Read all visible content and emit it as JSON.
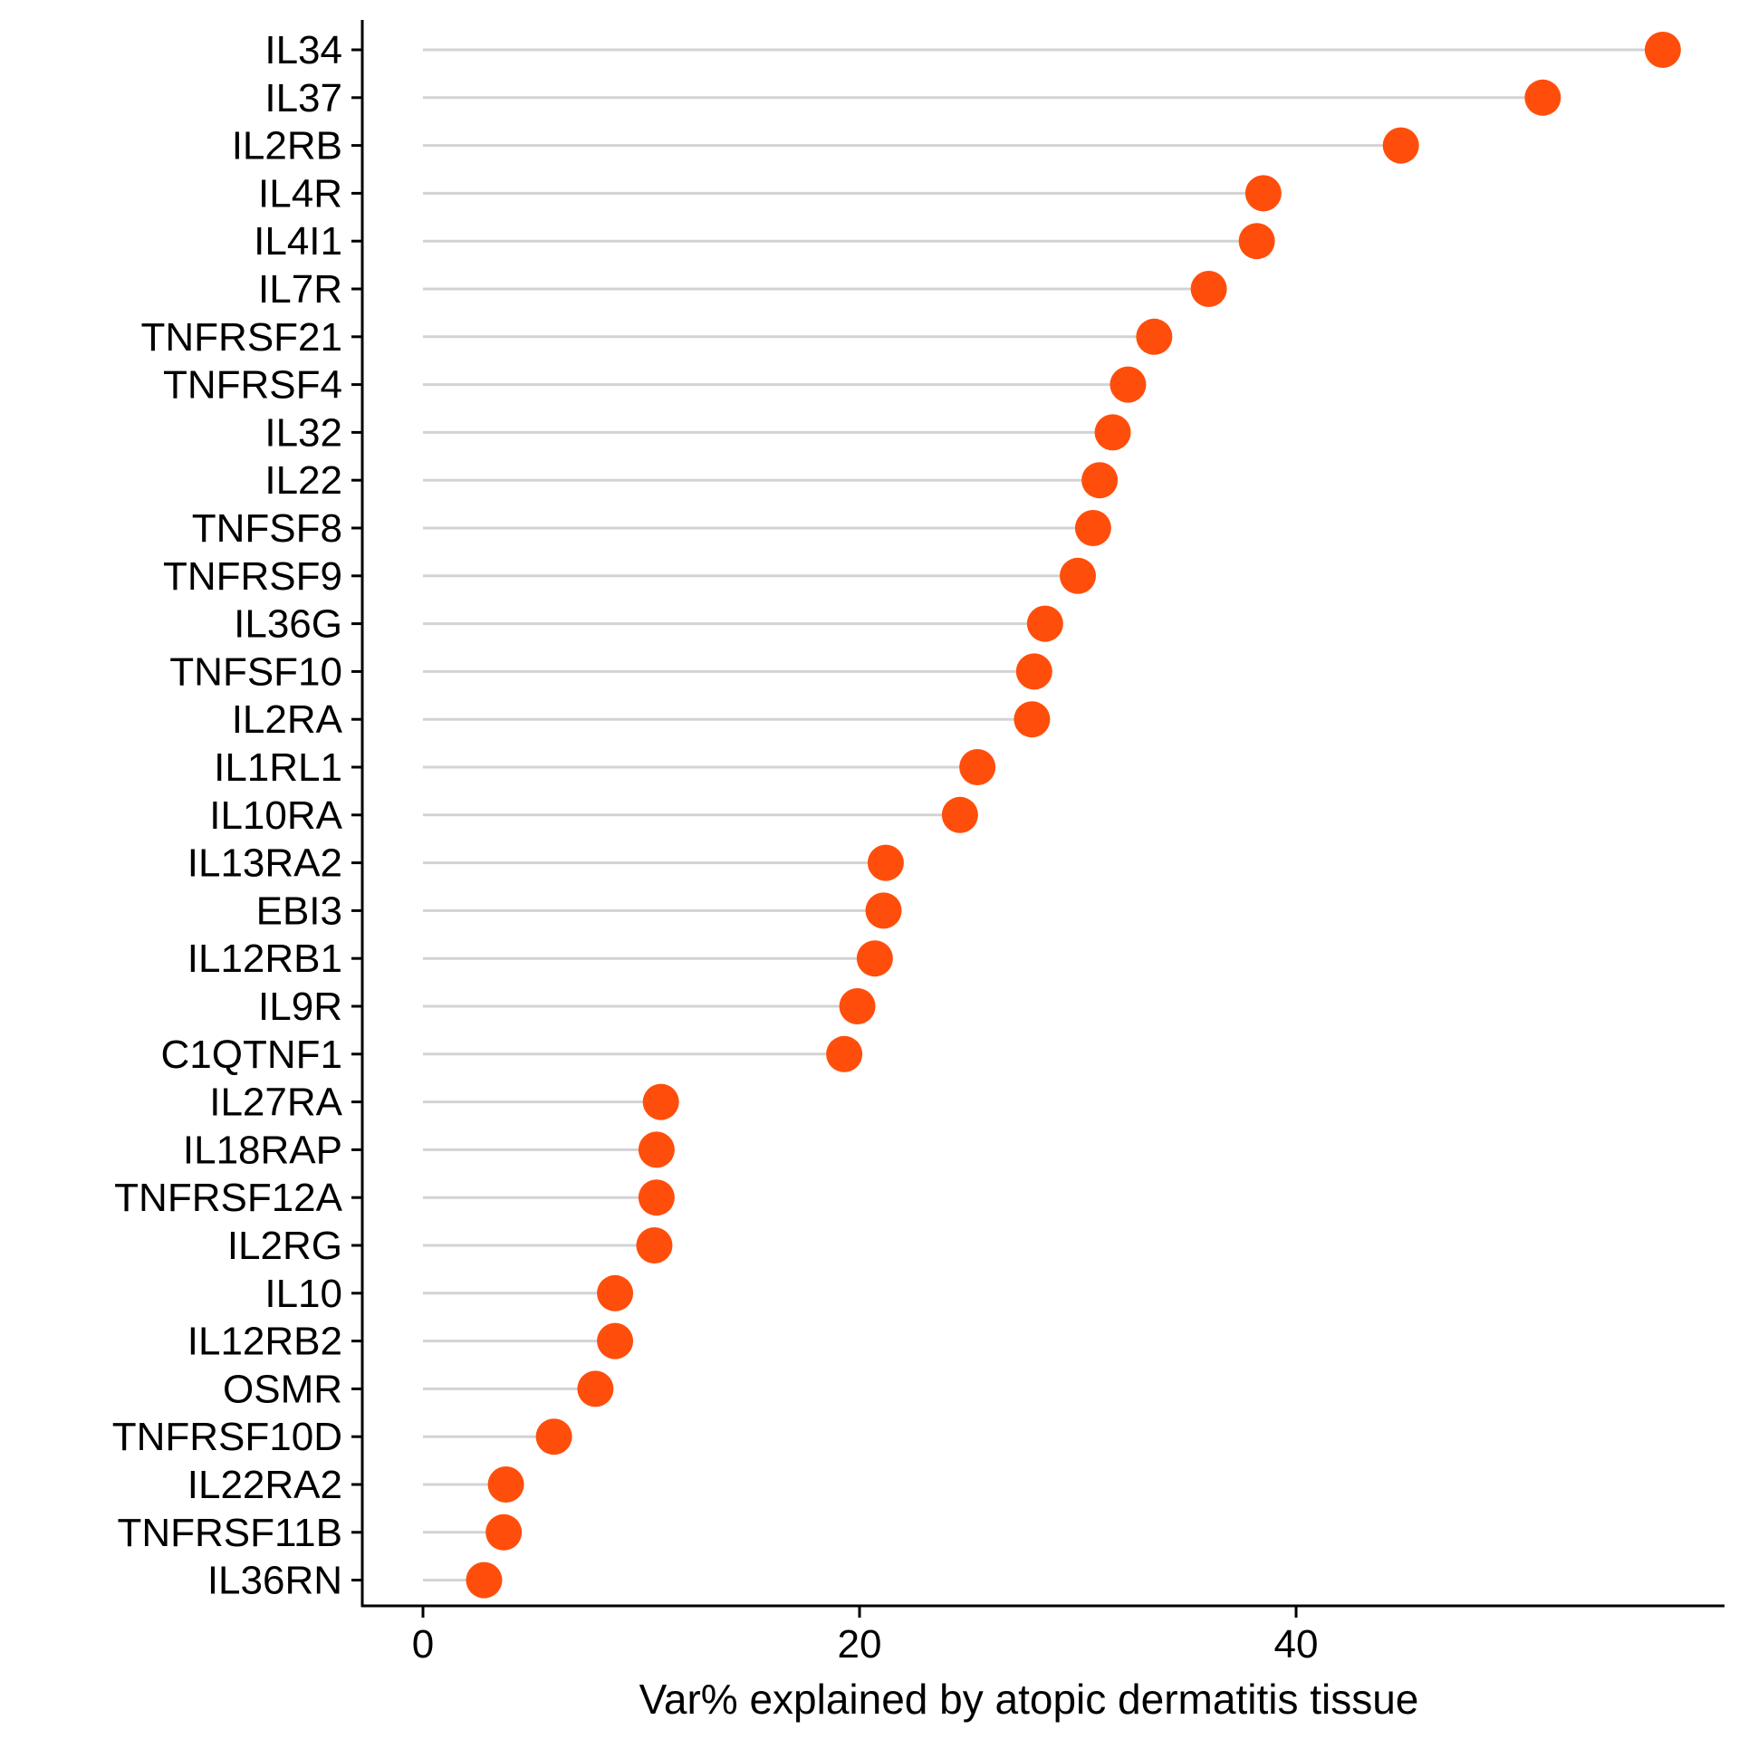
{
  "chart_data": {
    "type": "scatter",
    "subtype": "lollipop",
    "title": "",
    "xlabel": "Var% explained by atopic dermatitis tissue",
    "ylabel": "",
    "xlim": [
      -2.8,
      59.5
    ],
    "xticks": [
      0,
      20,
      40
    ],
    "grid": false,
    "legend": "none",
    "colors": {
      "point": "#FF4E0C",
      "stem": "#D3D3D3",
      "axis": "#000000"
    },
    "categories": [
      "IL34",
      "IL37",
      "IL2RB",
      "IL4R",
      "IL4I1",
      "IL7R",
      "TNFRSF21",
      "TNFRSF4",
      "IL32",
      "IL22",
      "TNFSF8",
      "TNFRSF9",
      "IL36G",
      "TNFSF10",
      "IL2RA",
      "IL1RL1",
      "IL10RA",
      "IL13RA2",
      "EBI3",
      "IL12RB1",
      "IL9R",
      "C1QTNF1",
      "IL27RA",
      "IL18RAP",
      "TNFRSF12A",
      "IL2RG",
      "IL10",
      "IL12RB2",
      "OSMR",
      "TNFRSF10D",
      "IL22RA2",
      "TNFRSF11B",
      "IL36RN"
    ],
    "values": [
      56.8,
      51.3,
      44.8,
      38.5,
      38.2,
      36.0,
      33.5,
      32.3,
      31.6,
      31.0,
      30.7,
      30.0,
      28.5,
      28.0,
      27.9,
      25.4,
      24.6,
      21.2,
      21.1,
      20.7,
      19.9,
      19.3,
      10.9,
      10.7,
      10.7,
      10.6,
      8.8,
      8.8,
      7.9,
      6.0,
      3.8,
      3.7,
      2.8
    ]
  }
}
